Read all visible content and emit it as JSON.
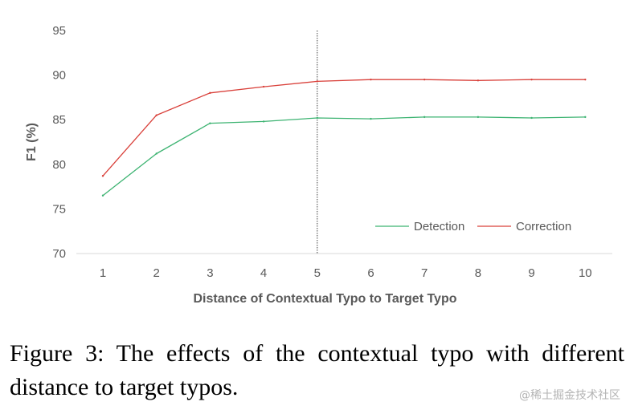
{
  "chart_data": {
    "type": "line",
    "title": "",
    "xlabel": "Distance of Contextual Typo to Target Typo",
    "ylabel": "F1 (%)",
    "x": [
      1,
      2,
      3,
      4,
      5,
      6,
      7,
      8,
      9,
      10
    ],
    "ylim": [
      70,
      95
    ],
    "yticks": [
      70,
      75,
      80,
      85,
      90,
      95
    ],
    "grid": false,
    "legend_position": "bottom-right",
    "vertical_marker_x": 5,
    "series": [
      {
        "name": "Detection",
        "color": "#3cb371",
        "values": [
          76.5,
          81.2,
          84.6,
          84.8,
          85.2,
          85.1,
          85.3,
          85.3,
          85.2,
          85.3
        ]
      },
      {
        "name": "Correction",
        "color": "#d9403a",
        "values": [
          78.7,
          85.5,
          88.0,
          88.7,
          89.3,
          89.5,
          89.5,
          89.4,
          89.5,
          89.5
        ]
      }
    ]
  },
  "caption": "Figure 3:  The effects of the contextual typo with different distance to target typos.",
  "watermark": "@稀土掘金技术社区"
}
